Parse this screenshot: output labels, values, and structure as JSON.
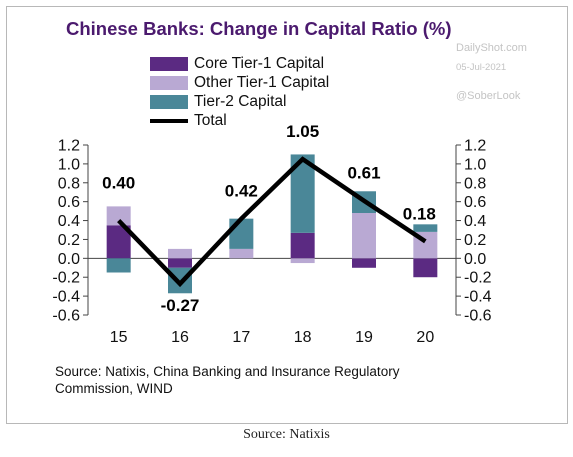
{
  "title": "Chinese Banks: Change in Capital Ratio (%)",
  "watermark": {
    "site": "DailyShot.com",
    "date": "05-Jul-2021",
    "handle": "@SoberLook"
  },
  "source_note": "Source: Natixis, China Banking and Insurance Regulatory Commission, WIND",
  "caption": "Source: Natixis",
  "colors": {
    "core_tier1": "#5b2a82",
    "other_tier1": "#b9a9d3",
    "tier2": "#4a8798",
    "total": "#000000",
    "axis": "#444444"
  },
  "chart_data": {
    "type": "bar",
    "stacked": true,
    "title": "Chinese Banks: Change in Capital Ratio (%)",
    "categories": [
      "15",
      "16",
      "17",
      "18",
      "19",
      "20"
    ],
    "ylim": [
      -0.6,
      1.2
    ],
    "yticks": [
      "-0.6",
      "-0.4",
      "-0.2",
      "0.0",
      "0.2",
      "0.4",
      "0.6",
      "0.8",
      "1.0",
      "1.2"
    ],
    "dual_y_axis": true,
    "grid": false,
    "legend_position": "top-left",
    "series": [
      {
        "name": "Core Tier-1 Capital",
        "values": [
          0.35,
          -0.1,
          0.0,
          0.27,
          -0.1,
          -0.2
        ]
      },
      {
        "name": "Other Tier-1 Capital",
        "values": [
          0.2,
          0.1,
          0.1,
          -0.05,
          0.48,
          0.28
        ]
      },
      {
        "name": "Tier-2 Capital",
        "values": [
          -0.15,
          -0.27,
          0.32,
          0.83,
          0.23,
          0.08
        ]
      }
    ],
    "line_series": {
      "name": "Total",
      "values": [
        0.4,
        -0.27,
        0.42,
        1.05,
        0.61,
        0.18
      ]
    },
    "data_labels": [
      "0.40",
      "-0.27",
      "0.42",
      "1.05",
      "0.61",
      "0.18"
    ]
  }
}
